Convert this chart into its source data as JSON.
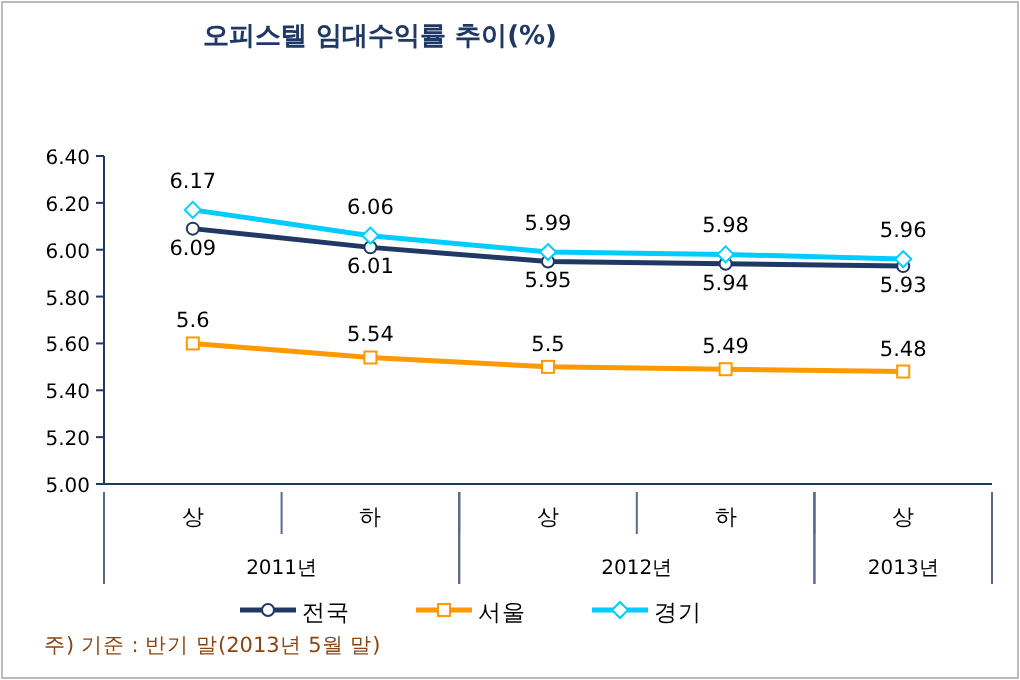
{
  "chart_data": {
    "type": "line",
    "title": "오피스텔 임대수익률 추이(%)",
    "categories": [
      "상",
      "하",
      "상",
      "하",
      "상"
    ],
    "series": [
      {
        "name": "전국",
        "color": "#1f3864",
        "marker": "circle",
        "values": [
          6.09,
          6.01,
          5.95,
          5.94,
          5.93
        ]
      },
      {
        "name": "서울",
        "color": "#ff9900",
        "marker": "square",
        "values": [
          5.6,
          5.54,
          5.5,
          5.49,
          5.48
        ]
      },
      {
        "name": "경기",
        "color": "#00ccff",
        "marker": "diamond",
        "values": [
          6.17,
          6.06,
          5.99,
          5.98,
          5.96
        ]
      }
    ],
    "ylim": [
      5.0,
      6.4
    ],
    "yticks": [
      {
        "value": 5.0,
        "label": "5.00"
      },
      {
        "value": 5.2,
        "label": "5.20"
      },
      {
        "value": 5.4,
        "label": "5.40"
      },
      {
        "value": 5.6,
        "label": "5.60"
      },
      {
        "value": 5.8,
        "label": "5.80"
      },
      {
        "value": 6.0,
        "label": "6.00"
      },
      {
        "value": 6.2,
        "label": "6.20"
      },
      {
        "value": 6.4,
        "label": "6.40"
      }
    ],
    "data_labels": true,
    "grid": false,
    "legend": "bottom",
    "annotations": [
      "2011년",
      "2012년",
      "2013년",
      "주) 기준 : 반기 말(2013년 5월 말)"
    ]
  }
}
